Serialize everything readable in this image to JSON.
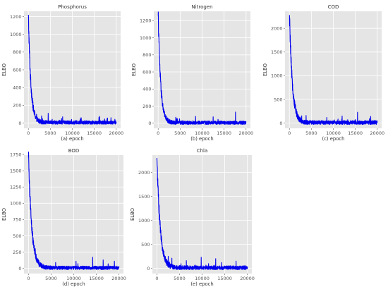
{
  "chart_data": [
    {
      "type": "line",
      "title": "Phosphorus",
      "xlabel": "(a) epoch",
      "ylabel": "ELBO",
      "xlim": [
        -1000,
        21000
      ],
      "ylim": [
        -60,
        1260
      ],
      "xticks": [
        0,
        5000,
        10000,
        15000,
        20000
      ],
      "yticks": [
        0,
        200,
        400,
        600,
        800,
        1000,
        1200
      ],
      "grid": true,
      "series": [
        {
          "start": 1200,
          "decay_epochs": 550,
          "baseline": 0,
          "noise_amplitude": 40,
          "epochs": 20000,
          "spikes": [
            [
              1500,
              95
            ],
            [
              3000,
              80
            ],
            [
              4500,
              110
            ],
            [
              7800,
              70
            ],
            [
              12000,
              60
            ],
            [
              16200,
              75
            ],
            [
              18800,
              60
            ]
          ]
        }
      ]
    },
    {
      "type": "line",
      "title": "Nitrogen",
      "xlabel": "(b) epoch",
      "ylabel": "ELBO",
      "xlim": [
        -1000,
        21000
      ],
      "ylim": [
        -60,
        1310
      ],
      "xticks": [
        0,
        5000,
        10000,
        15000,
        20000
      ],
      "yticks": [
        0,
        200,
        400,
        600,
        800,
        1000,
        1200
      ],
      "grid": true,
      "series": [
        {
          "start": 1260,
          "decay_epochs": 550,
          "baseline": 0,
          "noise_amplitude": 40,
          "epochs": 20000,
          "spikes": [
            [
              1600,
              100
            ],
            [
              4000,
              70
            ],
            [
              8500,
              80
            ],
            [
              12500,
              75
            ],
            [
              17600,
              130
            ]
          ]
        }
      ]
    },
    {
      "type": "line",
      "title": "COD",
      "xlabel": "(c) epoch",
      "ylabel": "ELBO",
      "xlim": [
        -1000,
        21000
      ],
      "ylim": [
        -110,
        2360
      ],
      "xticks": [
        0,
        5000,
        10000,
        15000,
        20000
      ],
      "yticks": [
        0,
        500,
        1000,
        1500,
        2000
      ],
      "grid": true,
      "series": [
        {
          "start": 2280,
          "decay_epochs": 650,
          "baseline": 0,
          "noise_amplitude": 80,
          "epochs": 20000,
          "spikes": [
            [
              1800,
              200
            ],
            [
              3800,
              160
            ],
            [
              8500,
              120
            ],
            [
              12000,
              150
            ],
            [
              15500,
              230
            ],
            [
              18500,
              140
            ]
          ]
        }
      ]
    },
    {
      "type": "line",
      "title": "BOD",
      "xlabel": "(d) epoch",
      "ylabel": "ELBO",
      "xlim": [
        -1000,
        21000
      ],
      "ylim": [
        -80,
        1740
      ],
      "xticks": [
        0,
        5000,
        10000,
        15000,
        20000
      ],
      "yticks": [
        0,
        250,
        500,
        750,
        1000,
        1250,
        1500,
        1750
      ],
      "grid": true,
      "series": [
        {
          "start": 1700,
          "decay_epochs": 700,
          "baseline": 0,
          "noise_amplitude": 55,
          "epochs": 20000,
          "spikes": [
            [
              2200,
              120
            ],
            [
              6000,
              90
            ],
            [
              10500,
              110
            ],
            [
              14200,
              170
            ],
            [
              16500,
              130
            ],
            [
              19000,
              110
            ]
          ]
        }
      ]
    },
    {
      "type": "line",
      "title": "Chla",
      "xlabel": "(e) epoch",
      "ylabel": "ELBO",
      "xlim": [
        -1000,
        21000
      ],
      "ylim": [
        -110,
        2360
      ],
      "xticks": [
        0,
        5000,
        10000,
        15000,
        20000
      ],
      "yticks": [
        0,
        500,
        1000,
        1500,
        2000
      ],
      "grid": true,
      "series": [
        {
          "start": 2300,
          "decay_epochs": 700,
          "baseline": 0,
          "noise_amplitude": 80,
          "epochs": 20000,
          "spikes": [
            [
              1500,
              300
            ],
            [
              2500,
              250
            ],
            [
              3300,
              210
            ],
            [
              6500,
              160
            ],
            [
              9800,
              230
            ],
            [
              13000,
              200
            ],
            [
              17500,
              150
            ]
          ]
        }
      ]
    }
  ],
  "style": {
    "line_color": "#0000ee",
    "panel_background": "#e5e5e5",
    "grid_color": "#ffffff",
    "text_color": "#333333",
    "tick_color": "#555555"
  }
}
